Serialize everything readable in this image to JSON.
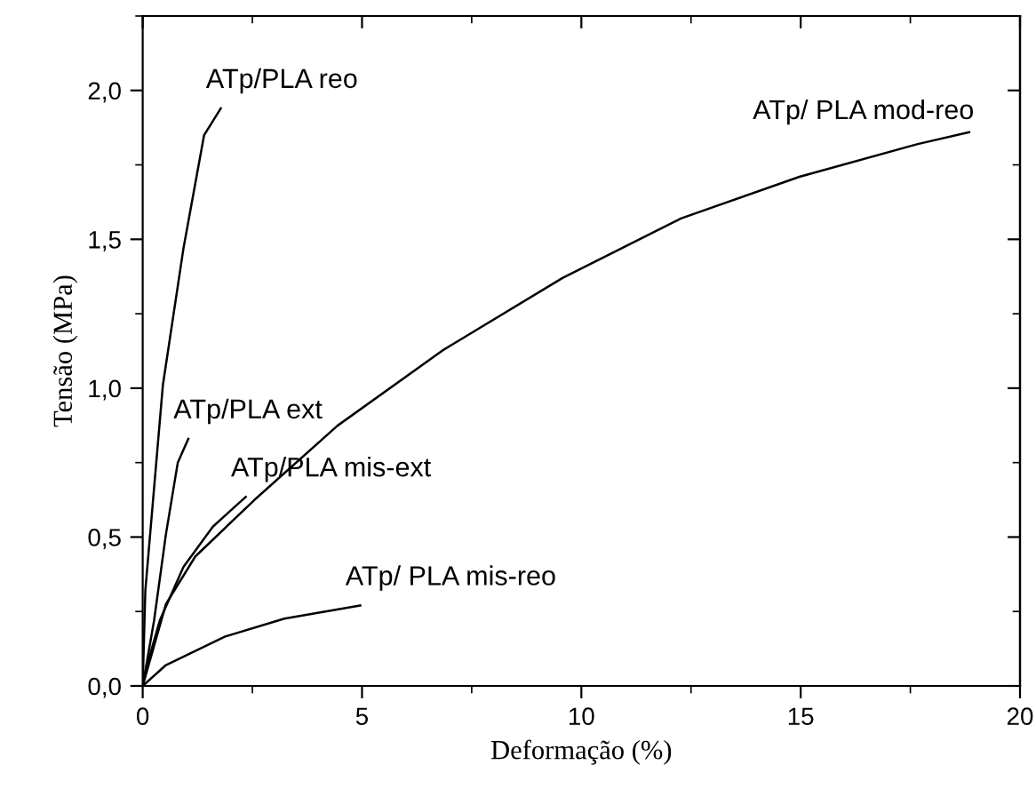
{
  "chart_data": {
    "type": "line",
    "xlabel": "Deformação (%)",
    "ylabel": "Tensão (MPa)",
    "xlim": [
      0,
      20
    ],
    "xticks": [
      0,
      5,
      10,
      15,
      20
    ],
    "ylim": [
      0,
      2.25
    ],
    "yticks": [
      {
        "value": 0,
        "label": "0,0"
      },
      {
        "value": 0.5,
        "label": "0,5"
      },
      {
        "value": 1.0,
        "label": "1,0"
      },
      {
        "value": 1.5,
        "label": "1,5"
      },
      {
        "value": 2.0,
        "label": "2,0"
      }
    ],
    "grid": false,
    "legend": false,
    "marker": "none",
    "line_style": "solid",
    "series": [
      {
        "name": "ATp/PLA reo",
        "color": "#000000",
        "x": [
          0,
          0.06,
          0.46,
          0.93,
          1.4,
          1.78
        ],
        "values": [
          0,
          0.32,
          1.01,
          1.47,
          1.85,
          1.94
        ]
      },
      {
        "name": "ATp/PLA ext",
        "color": "#000000",
        "x": [
          0,
          0.26,
          0.53,
          0.8,
          1.04
        ],
        "values": [
          0,
          0.22,
          0.51,
          0.75,
          0.83
        ]
      },
      {
        "name": "ATp/PLA mis-ext",
        "color": "#000000",
        "x": [
          0,
          0.12,
          0.39,
          0.93,
          1.6,
          2.35
        ],
        "values": [
          0,
          0.08,
          0.22,
          0.4,
          0.535,
          0.635
        ]
      },
      {
        "name": "ATp/ PLA mod-reo",
        "color": "#000000",
        "x": [
          0,
          0.53,
          1.2,
          2.55,
          4.44,
          6.87,
          9.57,
          12.27,
          14.97,
          17.67,
          18.84
        ],
        "values": [
          0,
          0.275,
          0.435,
          0.625,
          0.874,
          1.13,
          1.37,
          1.57,
          1.71,
          1.82,
          1.86
        ]
      },
      {
        "name": "ATp/ PLA mis-reo",
        "color": "#000000",
        "x": [
          0,
          0.53,
          1.88,
          3.23,
          4.96
        ],
        "values": [
          0,
          0.07,
          0.166,
          0.226,
          0.27
        ]
      }
    ]
  }
}
